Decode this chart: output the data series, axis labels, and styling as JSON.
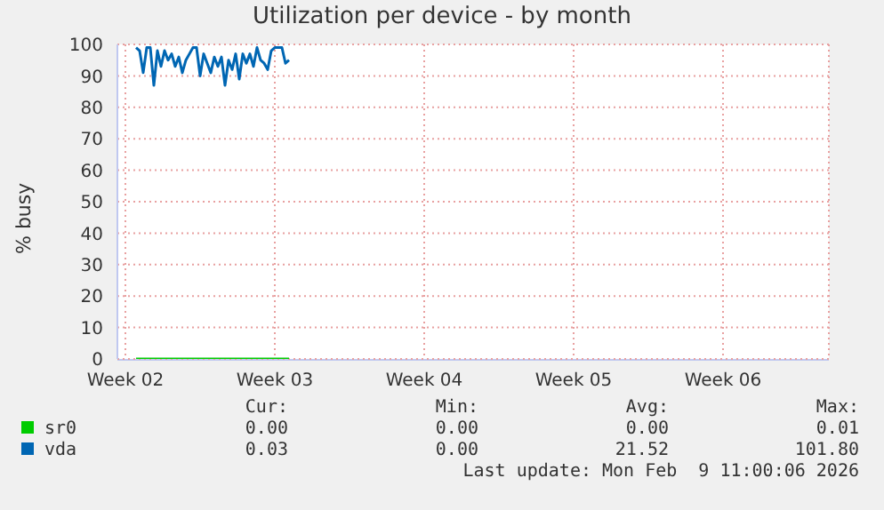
{
  "chart_data": {
    "type": "line",
    "title": "Utilization per device - by month",
    "ylabel": "% busy",
    "xlim": [
      "2026-01-07T03:00",
      "2026-02-09T11:00"
    ],
    "xticks": [
      {
        "value": "2026-01-07T12:00",
        "label": "Week 02"
      },
      {
        "value": "2026-01-14T12:00",
        "label": "Week 03"
      },
      {
        "value": "2026-01-21T12:00",
        "label": "Week 04"
      },
      {
        "value": "2026-01-28T12:00",
        "label": "Week 05"
      },
      {
        "value": "2026-02-04T12:00",
        "label": "Week 06"
      }
    ],
    "ylim": [
      0,
      100
    ],
    "yticks": [
      0,
      10,
      20,
      30,
      40,
      50,
      60,
      70,
      80,
      90,
      100
    ],
    "grid": true,
    "legend": "bottom",
    "marker": "none",
    "line_style": "solid",
    "series": [
      {
        "name": "sr0",
        "color": "#00cc00",
        "x": [
          "2026-01-08T00:00",
          "2026-01-15T04:00"
        ],
        "values": [
          0,
          0
        ]
      },
      {
        "name": "vda",
        "color": "#0066b3",
        "x": [
          "2026-01-08T00:00",
          "2026-01-08T04:00",
          "2026-01-08T08:00",
          "2026-01-08T12:00",
          "2026-01-08T16:00",
          "2026-01-08T20:00",
          "2026-01-09T00:00",
          "2026-01-09T04:00",
          "2026-01-09T08:00",
          "2026-01-09T12:00",
          "2026-01-09T16:00",
          "2026-01-09T20:00",
          "2026-01-10T00:00",
          "2026-01-10T04:00",
          "2026-01-10T08:00",
          "2026-01-10T12:00",
          "2026-01-10T16:00",
          "2026-01-10T20:00",
          "2026-01-11T00:00",
          "2026-01-11T04:00",
          "2026-01-11T08:00",
          "2026-01-11T12:00",
          "2026-01-11T16:00",
          "2026-01-11T20:00",
          "2026-01-12T00:00",
          "2026-01-12T04:00",
          "2026-01-12T08:00",
          "2026-01-12T12:00",
          "2026-01-12T16:00",
          "2026-01-12T20:00",
          "2026-01-13T00:00",
          "2026-01-13T04:00",
          "2026-01-13T08:00",
          "2026-01-13T12:00",
          "2026-01-13T16:00",
          "2026-01-13T20:00",
          "2026-01-14T00:00",
          "2026-01-14T04:00",
          "2026-01-14T08:00",
          "2026-01-14T12:00",
          "2026-01-14T16:00",
          "2026-01-14T20:00",
          "2026-01-15T00:00",
          "2026-01-15T04:00"
        ],
        "values": [
          99,
          98,
          91,
          99,
          99,
          87,
          98,
          93,
          98,
          95,
          97,
          93,
          96,
          91,
          95,
          97,
          99,
          99,
          90,
          97,
          94,
          91,
          96,
          93,
          96,
          87,
          95,
          92,
          97,
          89,
          97,
          94,
          97,
          93,
          99,
          95,
          94,
          92,
          98,
          99,
          99,
          99,
          94,
          95
        ]
      }
    ],
    "annotations": [
      "Cur:",
      "Min:",
      "Avg:",
      "Max:",
      "0.00",
      "0.00",
      "0.00",
      "0.01",
      "0.03",
      "0.00",
      "21.52",
      "101.80",
      "Last update: Mon Feb  9 11:00:06 2026"
    ]
  }
}
